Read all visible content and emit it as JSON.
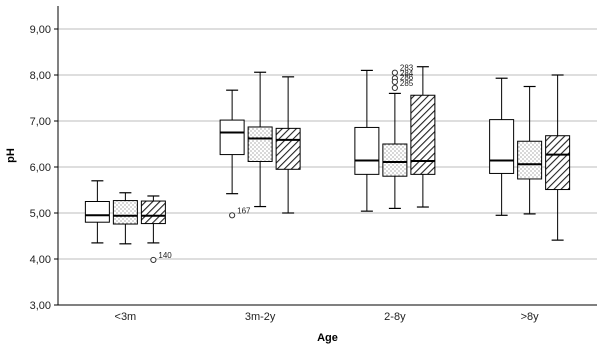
{
  "chart_data": {
    "type": "boxplot",
    "title": "",
    "xlabel": "Age",
    "ylabel": "pH",
    "ylim": [
      3.0,
      9.5
    ],
    "yticks": [
      "3,00",
      "4,00",
      "5,00",
      "6,00",
      "7,00",
      "8,00",
      "9,00"
    ],
    "grid": "horizontal",
    "categories": [
      "<3m",
      "3m-2y",
      "2-8y",
      ">8y"
    ],
    "series": [
      {
        "fill": "white",
        "boxes": [
          {
            "min": 4.35,
            "q1": 4.8,
            "median": 4.95,
            "q3": 5.25,
            "max": 5.7
          },
          {
            "min": 5.42,
            "q1": 6.27,
            "median": 6.75,
            "q3": 7.02,
            "max": 7.67
          },
          {
            "min": 5.04,
            "q1": 5.84,
            "median": 6.14,
            "q3": 6.86,
            "max": 8.1
          },
          {
            "min": 4.95,
            "q1": 5.86,
            "median": 6.14,
            "q3": 7.03,
            "max": 7.93
          }
        ]
      },
      {
        "fill": "dotted",
        "boxes": [
          {
            "min": 4.33,
            "q1": 4.76,
            "median": 4.94,
            "q3": 5.27,
            "max": 5.44
          },
          {
            "min": 5.14,
            "q1": 6.12,
            "median": 6.62,
            "q3": 6.87,
            "max": 8.06
          },
          {
            "min": 5.1,
            "q1": 5.8,
            "median": 6.11,
            "q3": 6.5,
            "max": 7.6
          },
          {
            "min": 4.98,
            "q1": 5.74,
            "median": 6.06,
            "q3": 6.56,
            "max": 7.75
          }
        ]
      },
      {
        "fill": "hatched",
        "boxes": [
          {
            "min": 4.35,
            "q1": 4.77,
            "median": 4.94,
            "q3": 5.26,
            "max": 5.37
          },
          {
            "min": 5.0,
            "q1": 5.95,
            "median": 6.59,
            "q3": 6.84,
            "max": 7.96
          },
          {
            "min": 5.13,
            "q1": 5.84,
            "median": 6.13,
            "q3": 7.56,
            "max": 8.18
          },
          {
            "min": 4.41,
            "q1": 5.51,
            "median": 6.27,
            "q3": 6.68,
            "max": 8.0
          }
        ]
      }
    ],
    "outliers": [
      {
        "category": 0,
        "series": 2,
        "value": 3.98,
        "label": "140"
      },
      {
        "category": 1,
        "series": 0,
        "value": 4.95,
        "label": "167"
      },
      {
        "category": 2,
        "series": 1,
        "value": 8.05,
        "label": "283"
      },
      {
        "category": 2,
        "series": 1,
        "value": 7.93,
        "label": "284"
      },
      {
        "category": 2,
        "series": 1,
        "value": 7.85,
        "label": "286"
      },
      {
        "category": 2,
        "series": 1,
        "value": 7.72,
        "label": "285"
      }
    ]
  }
}
